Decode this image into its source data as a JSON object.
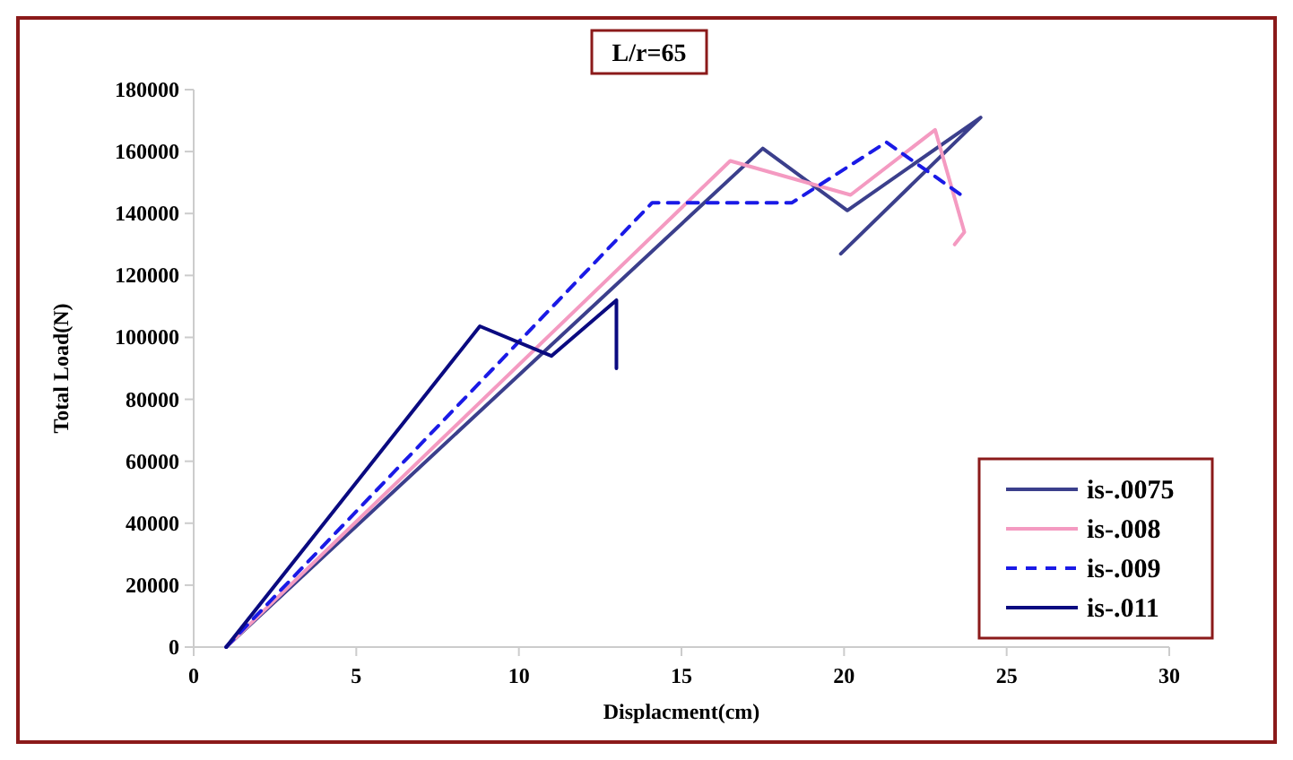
{
  "chart_data": {
    "type": "line",
    "title": "L/r=65",
    "xlabel": "Displacment(cm)",
    "ylabel": "Total Load(N)",
    "xlim": [
      0,
      30
    ],
    "xticks": [
      0,
      5,
      10,
      15,
      20,
      25,
      30
    ],
    "ylim": [
      0,
      180000
    ],
    "yticks": [
      0,
      20000,
      40000,
      60000,
      80000,
      100000,
      120000,
      140000,
      160000,
      180000
    ],
    "grid": false,
    "legend": "bottom right",
    "series": [
      {
        "name": "is-.0075",
        "color": "#3b3f8c",
        "x": [
          1,
          17.5,
          20.1,
          24.2,
          19.9
        ],
        "values": [
          0,
          161000,
          141000,
          171000,
          127000
        ],
        "line_style": "solid"
      },
      {
        "name": "is-.008",
        "color": "#f49ac1",
        "x": [
          1,
          16.5,
          20.2,
          22.8,
          23.7,
          23.4
        ],
        "values": [
          0,
          157000,
          146000,
          167000,
          134000,
          130000
        ],
        "line_style": "solid"
      },
      {
        "name": "is-.009",
        "color": "#1a1ae6",
        "x": [
          1,
          14.1,
          18.4,
          21.3,
          23.6
        ],
        "values": [
          0,
          143500,
          143500,
          163000,
          146000
        ],
        "line_style": "dashed"
      },
      {
        "name": "is-.011",
        "color": "#0a0a80",
        "x": [
          1,
          8.8,
          11,
          13,
          13
        ],
        "values": [
          0,
          103600,
          94000,
          112000,
          90000
        ],
        "line_style": "solid"
      }
    ]
  }
}
